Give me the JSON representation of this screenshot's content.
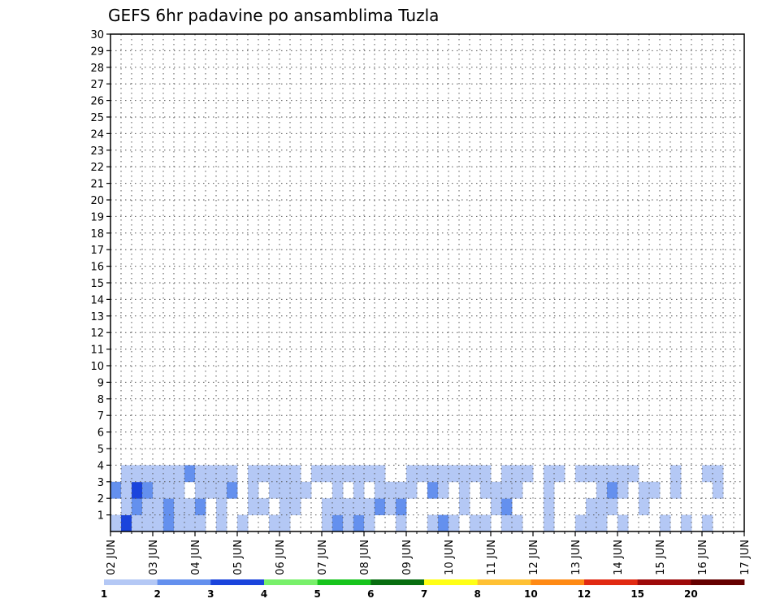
{
  "chart_data": {
    "type": "heatmap",
    "title": "GEFS 6hr padavine po ansamblima Tuzla",
    "xlabel": "",
    "ylabel": "",
    "x_ticks": [
      "02 JUN",
      "03 JUN",
      "04 JUN",
      "05 JUN",
      "06 JUN",
      "07 JUN",
      "08 JUN",
      "09 JUN",
      "10 JUN",
      "11 JUN",
      "12 JUN",
      "13 JUN",
      "14 JUN",
      "15 JUN",
      "16 JUN",
      "17 JUN"
    ],
    "y_ticks": [
      "1",
      "2",
      "3",
      "4",
      "5",
      "6",
      "7",
      "8",
      "9",
      "10",
      "11",
      "12",
      "13",
      "14",
      "15",
      "16",
      "17",
      "18",
      "19",
      "20",
      "21",
      "22",
      "23",
      "24",
      "25",
      "26",
      "27",
      "28",
      "29",
      "30"
    ],
    "xlim": [
      0,
      60
    ],
    "ylim": [
      0,
      30
    ],
    "grid": true,
    "steps_per_day": 4,
    "colorbar": {
      "labels": [
        "1",
        "2",
        "3",
        "4",
        "5",
        "6",
        "7",
        "8",
        "10",
        "12",
        "15",
        "20"
      ],
      "colors": [
        "#b4c8f5",
        "#6490ee",
        "#1a44dc",
        "#78f06a",
        "#17c41c",
        "#086e10",
        "#ffff16",
        "#ffc134",
        "#ff8a14",
        "#e12a12",
        "#9e0a0a",
        "#650000"
      ]
    },
    "cells": [
      [
        0,
        1,
        1
      ],
      [
        1,
        1,
        3
      ],
      [
        2,
        1,
        1
      ],
      [
        3,
        1,
        1
      ],
      [
        4,
        1,
        1
      ],
      [
        5,
        1,
        2
      ],
      [
        6,
        1,
        1
      ],
      [
        7,
        1,
        1
      ],
      [
        8,
        1,
        1
      ],
      [
        10,
        1,
        1
      ],
      [
        12,
        1,
        1
      ],
      [
        15,
        1,
        1
      ],
      [
        16,
        1,
        1
      ],
      [
        20,
        1,
        1
      ],
      [
        21,
        1,
        2
      ],
      [
        22,
        1,
        1
      ],
      [
        23,
        1,
        2
      ],
      [
        24,
        1,
        1
      ],
      [
        27,
        1,
        1
      ],
      [
        30,
        1,
        1
      ],
      [
        31,
        1,
        2
      ],
      [
        32,
        1,
        1
      ],
      [
        34,
        1,
        1
      ],
      [
        35,
        1,
        1
      ],
      [
        37,
        1,
        1
      ],
      [
        38,
        1,
        1
      ],
      [
        41,
        1,
        1
      ],
      [
        44,
        1,
        1
      ],
      [
        45,
        1,
        1
      ],
      [
        46,
        1,
        1
      ],
      [
        48,
        1,
        1
      ],
      [
        52,
        1,
        1
      ],
      [
        54,
        1,
        1
      ],
      [
        56,
        1,
        1
      ],
      [
        1,
        2,
        1
      ],
      [
        2,
        2,
        2
      ],
      [
        3,
        2,
        1
      ],
      [
        4,
        2,
        1
      ],
      [
        5,
        2,
        2
      ],
      [
        6,
        2,
        1
      ],
      [
        7,
        2,
        1
      ],
      [
        8,
        2,
        2
      ],
      [
        10,
        2,
        1
      ],
      [
        13,
        2,
        1
      ],
      [
        14,
        2,
        1
      ],
      [
        16,
        2,
        1
      ],
      [
        17,
        2,
        1
      ],
      [
        20,
        2,
        1
      ],
      [
        21,
        2,
        1
      ],
      [
        22,
        2,
        1
      ],
      [
        23,
        2,
        1
      ],
      [
        24,
        2,
        1
      ],
      [
        25,
        2,
        2
      ],
      [
        26,
        2,
        1
      ],
      [
        27,
        2,
        2
      ],
      [
        33,
        2,
        1
      ],
      [
        36,
        2,
        1
      ],
      [
        37,
        2,
        2
      ],
      [
        41,
        2,
        1
      ],
      [
        45,
        2,
        1
      ],
      [
        46,
        2,
        1
      ],
      [
        47,
        2,
        1
      ],
      [
        50,
        2,
        1
      ],
      [
        0,
        3,
        2
      ],
      [
        1,
        3,
        1
      ],
      [
        2,
        3,
        3
      ],
      [
        3,
        3,
        2
      ],
      [
        4,
        3,
        1
      ],
      [
        5,
        3,
        1
      ],
      [
        6,
        3,
        1
      ],
      [
        8,
        3,
        1
      ],
      [
        9,
        3,
        1
      ],
      [
        10,
        3,
        1
      ],
      [
        11,
        3,
        2
      ],
      [
        13,
        3,
        1
      ],
      [
        15,
        3,
        1
      ],
      [
        16,
        3,
        1
      ],
      [
        17,
        3,
        1
      ],
      [
        18,
        3,
        1
      ],
      [
        21,
        3,
        1
      ],
      [
        23,
        3,
        1
      ],
      [
        25,
        3,
        1
      ],
      [
        26,
        3,
        1
      ],
      [
        27,
        3,
        1
      ],
      [
        28,
        3,
        1
      ],
      [
        30,
        3,
        2
      ],
      [
        31,
        3,
        1
      ],
      [
        33,
        3,
        1
      ],
      [
        35,
        3,
        1
      ],
      [
        36,
        3,
        1
      ],
      [
        37,
        3,
        1
      ],
      [
        38,
        3,
        1
      ],
      [
        41,
        3,
        1
      ],
      [
        46,
        3,
        1
      ],
      [
        47,
        3,
        2
      ],
      [
        48,
        3,
        1
      ],
      [
        50,
        3,
        1
      ],
      [
        51,
        3,
        1
      ],
      [
        53,
        3,
        1
      ],
      [
        57,
        3,
        1
      ],
      [
        1,
        4,
        1
      ],
      [
        2,
        4,
        1
      ],
      [
        3,
        4,
        1
      ],
      [
        4,
        4,
        1
      ],
      [
        5,
        4,
        1
      ],
      [
        6,
        4,
        1
      ],
      [
        7,
        4,
        2
      ],
      [
        8,
        4,
        1
      ],
      [
        9,
        4,
        1
      ],
      [
        10,
        4,
        1
      ],
      [
        11,
        4,
        1
      ],
      [
        13,
        4,
        1
      ],
      [
        14,
        4,
        1
      ],
      [
        15,
        4,
        1
      ],
      [
        16,
        4,
        1
      ],
      [
        17,
        4,
        1
      ],
      [
        19,
        4,
        1
      ],
      [
        20,
        4,
        1
      ],
      [
        21,
        4,
        1
      ],
      [
        22,
        4,
        1
      ],
      [
        23,
        4,
        1
      ],
      [
        24,
        4,
        1
      ],
      [
        25,
        4,
        1
      ],
      [
        28,
        4,
        1
      ],
      [
        29,
        4,
        1
      ],
      [
        30,
        4,
        1
      ],
      [
        31,
        4,
        1
      ],
      [
        32,
        4,
        1
      ],
      [
        33,
        4,
        1
      ],
      [
        34,
        4,
        1
      ],
      [
        35,
        4,
        1
      ],
      [
        37,
        4,
        1
      ],
      [
        38,
        4,
        1
      ],
      [
        39,
        4,
        1
      ],
      [
        41,
        4,
        1
      ],
      [
        42,
        4,
        1
      ],
      [
        44,
        4,
        1
      ],
      [
        45,
        4,
        1
      ],
      [
        46,
        4,
        1
      ],
      [
        47,
        4,
        1
      ],
      [
        48,
        4,
        1
      ],
      [
        49,
        4,
        1
      ],
      [
        53,
        4,
        1
      ],
      [
        56,
        4,
        1
      ],
      [
        57,
        4,
        1
      ]
    ]
  }
}
